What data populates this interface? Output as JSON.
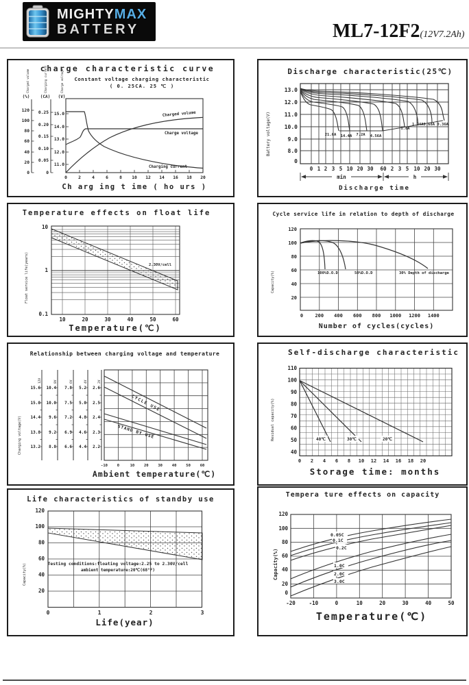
{
  "header": {
    "brand_top_1": "MIGHTY",
    "brand_top_2": "MAX",
    "brand_bottom": "BATTERY",
    "model": "ML7-12F2",
    "spec": "(12V7.2Ah)"
  },
  "charts": {
    "c1": {
      "title": "charge characteristic curve",
      "sub1": "Constant voltage charging characteristic",
      "sub2": "( 0. 25CA. 25 ℃ )",
      "unit_pct": "(%)",
      "unit_ca": "(CA)",
      "unit_v": "(V)",
      "pct_ticks": [
        "120",
        "100",
        "80",
        "60",
        "40",
        "20",
        "0"
      ],
      "ca_ticks": [
        "0.25",
        "0.20",
        "0.15",
        "0.10",
        "0.05",
        "0"
      ],
      "v_ticks": [
        "15.0",
        "14.0",
        "13.0",
        "12.0",
        "11.0"
      ],
      "xticks": [
        "0",
        "2",
        "4",
        "6",
        "8",
        "10",
        "12",
        "14",
        "16",
        "18",
        "20"
      ],
      "xlabel": "Ch arg ing t ime ( ho urs )",
      "curve_volume": "Charged volume",
      "curve_voltage": "Charge voltage",
      "curve_current": "Charging current",
      "cap1": "Charged volume",
      "cap2": "Charging current",
      "cap3": "Charge voltage"
    },
    "c2": {
      "title": "Discharge characteristic(25℃)",
      "ylabel": "Battery voltage(V)",
      "yticks": [
        "13.0",
        "12.0",
        "11.0",
        "10.0",
        "9.0",
        "8.0",
        "0"
      ],
      "xticks_min": [
        "0",
        "1",
        "2",
        "3",
        "5",
        "10",
        "20",
        "30",
        "60"
      ],
      "xticks_h": [
        "2",
        "3",
        "5",
        "10",
        "20",
        "30"
      ],
      "unit_min": "min",
      "unit_h": "h",
      "xlabel": "Discharge time",
      "lbl_216": "21.6A",
      "lbl_144": "14.4A",
      "lbl_72": "7.2A",
      "lbl_456": "4.56A",
      "lbl_18": "1.8A",
      "lbl_small": "1.24A0.68A 0.36A"
    },
    "c3": {
      "title": "Temperature effects on float life",
      "ylabel": "Float service life(years)",
      "yticks": [
        "10",
        "1",
        "0.1"
      ],
      "note": "2.30V/cell",
      "xticks": [
        "10",
        "20",
        "30",
        "40",
        "50",
        "60"
      ],
      "xlabel": "Temperature(℃)"
    },
    "c4": {
      "title": "Cycle service life in relation to depth of discharge",
      "ylabel": "Capacity(%)",
      "yticks": [
        "120",
        "100",
        "80",
        "60",
        "40",
        "20"
      ],
      "xticks": [
        "0",
        "200",
        "400",
        "600",
        "800",
        "1000",
        "1200",
        "1400"
      ],
      "xlabel": "Number of cycles(cycles)",
      "lbl_100": "100%D.O.D",
      "lbl_50": "50%D.O.D",
      "lbl_30": "30% Depth of discharge"
    },
    "c5": {
      "title": "Relationship between charging voltage and temperature",
      "ylabel": "Charging voltage(V)",
      "a1": [
        "15.6",
        "15.0",
        "14.4",
        "13.8",
        "13.2"
      ],
      "a2": [
        "10.4",
        "10.0",
        "9.6",
        "9.2",
        "8.8"
      ],
      "a3": [
        "7.8",
        "7.5",
        "7.2",
        "6.9",
        "6.6"
      ],
      "a4": [
        "5.2",
        "5.0",
        "4.8",
        "4.6",
        "4.4"
      ],
      "a5": [
        "2.6",
        "2.5",
        "2.4",
        "2.3",
        "2.2"
      ],
      "caps": [
        "12V",
        "8V",
        "6V",
        "4V",
        "2V"
      ],
      "xticks": [
        "-10",
        "0",
        "10",
        "20",
        "30",
        "40",
        "50",
        "60"
      ],
      "xlabel": "Ambient temperature(℃)",
      "lbl_cycle": "CYCLE USE",
      "lbl_standby": "STAND BY USE"
    },
    "c6": {
      "title": "Self-discharge characteristic",
      "ylabel": "Residual capacity(%)",
      "yticks": [
        "110",
        "100",
        "90",
        "80",
        "70",
        "60",
        "50",
        "40"
      ],
      "xticks": [
        "0",
        "2",
        "4",
        "6",
        "8",
        "10",
        "12",
        "14",
        "16",
        "18",
        "20"
      ],
      "xlabel": "Storage time: months",
      "lbl_40": "40℃",
      "lbl_30": "30℃",
      "lbl_20": "20℃"
    },
    "c7": {
      "title": "Life characteristics of standby use",
      "ylabel": "Capacity(%)",
      "yticks": [
        "120",
        "100",
        "80",
        "60",
        "40",
        "20"
      ],
      "xticks": [
        "0",
        "1",
        "2",
        "3"
      ],
      "note1": "Testing conditions:floating voltage:2.25 to 2.30V/cell",
      "note2": "ambient temperature:20℃(68°F)",
      "xlabel": "Life(year)"
    },
    "c8": {
      "title": "Tempera ture effects on capacity",
      "ylabel": "Capacity(%)",
      "yticks": [
        "120",
        "100",
        "80",
        "60",
        "40",
        "20",
        "0"
      ],
      "xticks": [
        "-20",
        "-10",
        "0",
        "10",
        "20",
        "30",
        "40",
        "50"
      ],
      "xlabel": "Temperature(℃)",
      "labels": [
        "0.05C",
        "0.1C",
        "0.2C",
        "1.0C",
        "2.0C",
        "3.0C"
      ]
    }
  },
  "chart_data": [
    {
      "id": "charge-characteristic",
      "type": "line",
      "title": "charge characteristic curve",
      "subtitle": "Constant voltage charging characteristic (0.25CA, 25℃)",
      "xlabel": "Charging time (hours)",
      "x": [
        0,
        2,
        4,
        6,
        8,
        10,
        12,
        14,
        16,
        18,
        20
      ],
      "series": [
        {
          "name": "Charged volume",
          "unit": "%",
          "values": [
            0,
            30,
            52,
            67,
            78,
            87,
            94,
            99,
            103,
            106,
            108
          ]
        },
        {
          "name": "Charge voltage",
          "unit": "V",
          "values": [
            12.4,
            12.9,
            14.0,
            14.0,
            14.0,
            14.0,
            14.0,
            14.0,
            14.0,
            14.0,
            14.0
          ]
        },
        {
          "name": "Charging current",
          "unit": "CA",
          "values": [
            0.25,
            0.25,
            0.13,
            0.08,
            0.055,
            0.04,
            0.03,
            0.024,
            0.02,
            0.017,
            0.015
          ]
        }
      ],
      "axes": {
        "percent": [
          0,
          120
        ],
        "ca": [
          0,
          0.25
        ],
        "volt": [
          11,
          15
        ]
      }
    },
    {
      "id": "discharge-characteristic",
      "type": "line",
      "title": "Discharge characteristic(25℃)",
      "xlabel": "Discharge time",
      "ylabel": "Battery voltage(V)",
      "ylim": [
        8,
        13.4
      ],
      "series": [
        {
          "name": "21.6A",
          "points_min_V": [
            [
              0.2,
              12.4
            ],
            [
              1,
              11.9
            ],
            [
              3,
              11.6
            ],
            [
              5,
              10.9
            ],
            [
              5.8,
              9.8
            ]
          ]
        },
        {
          "name": "14.4A",
          "points_min_V": [
            [
              0.2,
              12.6
            ],
            [
              2,
              12.1
            ],
            [
              5,
              11.9
            ],
            [
              8,
              11.2
            ],
            [
              10,
              9.8
            ]
          ]
        },
        {
          "name": "7.2A",
          "points_min_V": [
            [
              0.5,
              12.7
            ],
            [
              5,
              12.3
            ],
            [
              15,
              12.0
            ],
            [
              25,
              11.0
            ],
            [
              30,
              9.8
            ]
          ]
        },
        {
          "name": "4.56A",
          "points_min_V": [
            [
              1,
              12.8
            ],
            [
              10,
              12.5
            ],
            [
              30,
              12.1
            ],
            [
              50,
              11.0
            ],
            [
              60,
              9.8
            ]
          ]
        },
        {
          "name": "1.8A",
          "points_min_V": [
            [
              5,
              12.9
            ],
            [
              60,
              12.5
            ],
            [
              120,
              12.0
            ],
            [
              170,
              10.8
            ],
            [
              180,
              10.0
            ]
          ]
        },
        {
          "name": "1.24A",
          "points_min_V": [
            [
              10,
              13.0
            ],
            [
              120,
              12.5
            ],
            [
              240,
              11.8
            ],
            [
              290,
              10.2
            ]
          ]
        },
        {
          "name": "0.68A",
          "points_min_V": [
            [
              10,
              13.0
            ],
            [
              240,
              12.4
            ],
            [
              480,
              11.5
            ],
            [
              600,
              10.3
            ]
          ]
        },
        {
          "name": "0.36A",
          "points_min_V": [
            [
              10,
              13.1
            ],
            [
              480,
              12.3
            ],
            [
              1000,
              11.2
            ],
            [
              1200,
              10.5
            ]
          ]
        }
      ]
    },
    {
      "id": "temperature-effects-on-float-life",
      "type": "area",
      "title": "Temperature effects on float life",
      "xlabel": "Temperature(℃)",
      "ylabel": "Float service life(years)",
      "yscale": "log",
      "annotation": "2.30V/cell",
      "x": [
        10,
        20,
        30,
        40,
        50,
        60
      ],
      "band_upper_years": [
        7,
        4.1,
        2.4,
        1.4,
        0.8,
        0.5
      ],
      "band_lower_years": [
        4.5,
        2.6,
        1.5,
        0.9,
        0.5,
        0.3
      ]
    },
    {
      "id": "cycle-service-life",
      "type": "line",
      "title": "Cycle service life in relation to depth of discharge",
      "xlabel": "Number of cycles(cycles)",
      "ylabel": "Capacity(%)",
      "xlim": [
        0,
        1600
      ],
      "ylim": [
        0,
        120
      ],
      "series": [
        {
          "name": "100%D.O.D",
          "points": [
            [
              0,
              98
            ],
            [
              60,
              100
            ],
            [
              150,
              85
            ],
            [
              215,
              60
            ]
          ]
        },
        {
          "name": "50%D.O.D",
          "points": [
            [
              0,
              98
            ],
            [
              150,
              100
            ],
            [
              350,
              85
            ],
            [
              460,
              60
            ]
          ]
        },
        {
          "name": "30% Depth of discharge",
          "points": [
            [
              0,
              98
            ],
            [
              300,
              98
            ],
            [
              700,
              88
            ],
            [
              1000,
              78
            ],
            [
              1320,
              61
            ]
          ]
        }
      ]
    },
    {
      "id": "charging-voltage-vs-temperature",
      "type": "line",
      "title": "Relationship between charging voltage and temperature",
      "xlabel": "Ambient temperature(℃)",
      "ylabel": "Charging voltage(V)",
      "x": [
        -10,
        0,
        10,
        20,
        30,
        40,
        50,
        60
      ],
      "scales_V": {
        "12V": [
          15.6,
          15.0,
          14.4,
          13.8,
          13.2
        ],
        "8V": [
          10.4,
          10.0,
          9.6,
          9.2,
          8.8
        ],
        "6V": [
          7.8,
          7.5,
          7.2,
          6.9,
          6.6
        ],
        "4V": [
          5.2,
          5.0,
          4.8,
          4.6,
          4.4
        ],
        "2V": [
          2.6,
          2.5,
          2.4,
          2.3,
          2.2
        ]
      },
      "series": [
        {
          "name": "CYCLE USE upper (V/cell)",
          "values": [
            2.68,
            2.63,
            2.58,
            2.53,
            2.48,
            2.43,
            2.38,
            2.33
          ]
        },
        {
          "name": "CYCLE USE lower (V/cell)",
          "values": [
            2.6,
            2.55,
            2.5,
            2.45,
            2.41,
            2.36,
            2.31,
            2.26
          ]
        },
        {
          "name": "STAND BY USE upper (V/cell)",
          "values": [
            2.42,
            2.39,
            2.36,
            2.33,
            2.3,
            2.27,
            2.25,
            2.22
          ]
        },
        {
          "name": "STAND BY USE lower (V/cell)",
          "values": [
            2.38,
            2.35,
            2.32,
            2.29,
            2.26,
            2.24,
            2.21,
            2.18
          ]
        }
      ]
    },
    {
      "id": "self-discharge",
      "type": "line",
      "title": "Self-discharge characteristic",
      "xlabel": "Storage time: months",
      "ylabel": "Residual capacity(%)",
      "ylim": [
        40,
        110
      ],
      "series": [
        {
          "name": "40℃",
          "points": [
            [
              0,
              100
            ],
            [
              5,
              49
            ]
          ]
        },
        {
          "name": "30℃",
          "points": [
            [
              0,
              100
            ],
            [
              10,
              49
            ]
          ]
        },
        {
          "name": "20℃",
          "points": [
            [
              0,
              100
            ],
            [
              20,
              49
            ]
          ]
        }
      ]
    },
    {
      "id": "standby-life",
      "type": "area",
      "title": "Life characteristics of standby use",
      "xlabel": "Life(year)",
      "ylabel": "Capacity(%)",
      "ylim": [
        0,
        120
      ],
      "x": [
        0,
        1,
        2,
        3
      ],
      "band_upper": [
        100,
        99,
        98,
        97
      ],
      "band_lower": [
        97,
        88,
        78,
        68
      ],
      "notes": [
        "Testing conditions:floating voltage:2.25 to 2.30V/cell",
        "ambient temperature:20℃(68°F)"
      ]
    },
    {
      "id": "temperature-effects-on-capacity",
      "type": "line",
      "title": "Tempera ture effects on capacity",
      "xlabel": "Temperature(℃)",
      "ylabel": "Capacity(%)",
      "x": [
        -20,
        -10,
        0,
        10,
        20,
        30,
        40,
        50
      ],
      "ylim": [
        0,
        120
      ],
      "series": [
        {
          "name": "0.05C",
          "values": [
            67,
            77,
            85,
            92,
            98,
            103,
            108,
            113
          ]
        },
        {
          "name": "0.1C",
          "values": [
            61,
            71,
            79,
            87,
            93,
            99,
            104,
            108
          ]
        },
        {
          "name": "0.2C",
          "values": [
            54,
            64,
            73,
            81,
            88,
            94,
            99,
            104
          ]
        },
        {
          "name": "1.0C",
          "values": [
            28,
            40,
            51,
            61,
            70,
            78,
            85,
            92
          ]
        },
        {
          "name": "2.0C",
          "values": [
            16,
            28,
            39,
            50,
            59,
            68,
            76,
            83
          ]
        },
        {
          "name": "3.0C",
          "values": [
            3,
            15,
            27,
            38,
            48,
            57,
            66,
            74
          ]
        }
      ]
    }
  ]
}
